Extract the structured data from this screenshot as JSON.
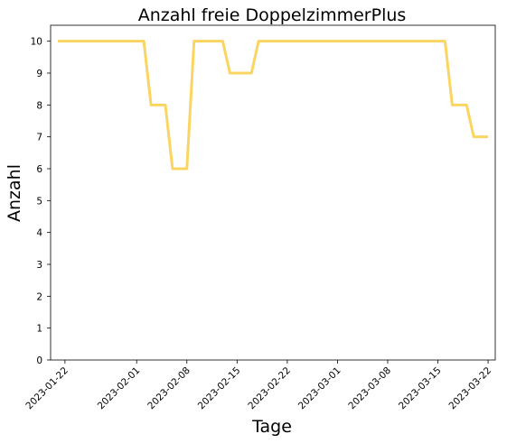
{
  "chart_data": {
    "type": "line",
    "title": "Anzahl freie DoppelzimmerPlus",
    "xlabel": "Tage",
    "ylabel": "Anzahl",
    "ylim": [
      0,
      10.5
    ],
    "xlim": [
      "2023-01-20",
      "2023-03-23"
    ],
    "grid": false,
    "line_color": "#fbd561",
    "x_ticks": [
      "2023-01-22",
      "2023-02-01",
      "2023-02-08",
      "2023-02-15",
      "2023-02-22",
      "2023-03-01",
      "2023-03-08",
      "2023-03-15",
      "2023-03-22"
    ],
    "y_ticks": [
      0,
      1,
      2,
      3,
      4,
      5,
      6,
      7,
      8,
      9,
      10
    ],
    "series": [
      {
        "x": [
          "2023-01-21",
          "2023-02-02",
          "2023-02-03",
          "2023-02-04",
          "2023-02-05",
          "2023-02-06",
          "2023-02-07",
          "2023-02-08",
          "2023-02-09",
          "2023-02-10",
          "2023-02-11",
          "2023-02-12",
          "2023-02-13",
          "2023-02-14",
          "2023-02-15",
          "2023-02-16",
          "2023-02-17",
          "2023-02-18",
          "2023-03-16",
          "2023-03-17",
          "2023-03-18",
          "2023-03-19",
          "2023-03-20",
          "2023-03-21",
          "2023-03-22"
        ],
        "values": [
          10,
          10,
          8,
          8,
          8,
          6,
          6,
          6,
          10,
          10,
          10,
          10,
          10,
          9,
          9,
          9,
          9,
          10,
          10,
          8,
          8,
          8,
          7,
          7,
          7
        ]
      }
    ]
  }
}
